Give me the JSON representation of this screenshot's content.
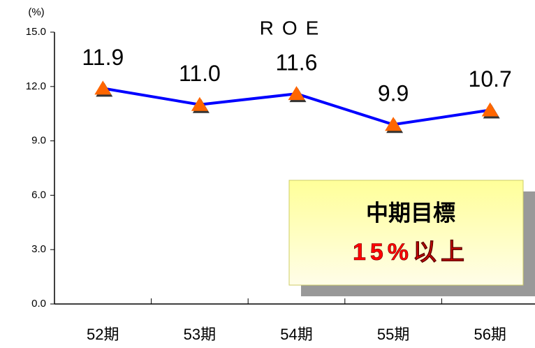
{
  "chart_data": {
    "type": "line",
    "title": "ROE",
    "y_unit": "(%)",
    "categories": [
      "52期",
      "53期",
      "54期",
      "55期",
      "56期"
    ],
    "series": [
      {
        "name": "ROE",
        "color": "#0000ff",
        "marker_color": "#ff6600",
        "values": [
          11.9,
          11.0,
          11.6,
          9.9,
          10.7
        ],
        "value_labels": [
          "11.9",
          "11.0",
          "11.6",
          "9.9",
          "10.7"
        ]
      }
    ],
    "ylim": [
      0,
      15
    ],
    "yticks": [
      {
        "value": 0,
        "label": "0.0"
      },
      {
        "value": 3,
        "label": "3.0"
      },
      {
        "value": 6,
        "label": "6.0"
      },
      {
        "value": 9,
        "label": "9.0"
      },
      {
        "value": 12,
        "label": "12.0"
      },
      {
        "value": 15,
        "label": "15.0"
      }
    ],
    "grid": false,
    "annotation": {
      "line1": "中期目標",
      "line2": "15%以上"
    }
  }
}
